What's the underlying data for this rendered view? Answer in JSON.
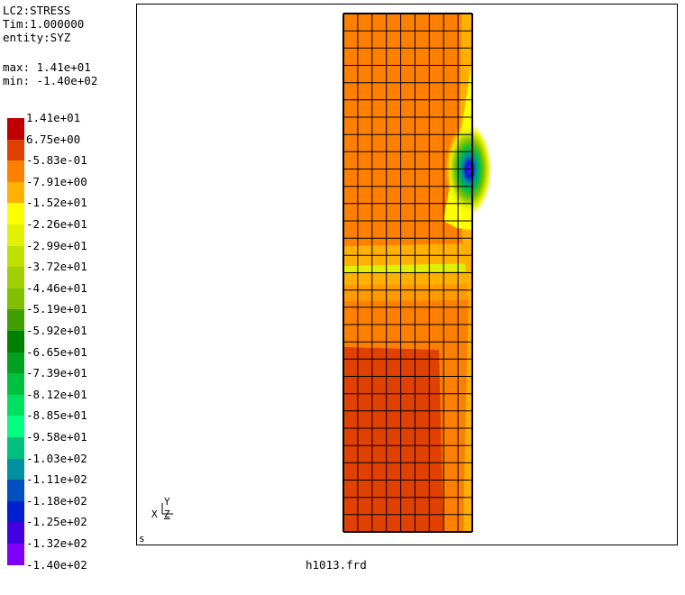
{
  "header": {
    "line1": "LC2:STRESS",
    "line2": "Tim:1.000000",
    "line3": "entity:SYZ",
    "max": "max: 1.41e+01",
    "min": "min: -1.40e+02"
  },
  "legend": {
    "labels": [
      "1.41e+01",
      "6.75e+00",
      "-5.83e-01",
      "-7.91e+00",
      "-1.52e+01",
      "-2.26e+01",
      "-2.99e+01",
      "-3.72e+01",
      "-4.46e+01",
      "-5.19e+01",
      "-5.92e+01",
      "-6.65e+01",
      "-7.39e+01",
      "-8.12e+01",
      "-8.85e+01",
      "-9.58e+01",
      "-1.03e+02",
      "-1.11e+02",
      "-1.18e+02",
      "-1.25e+02",
      "-1.32e+02",
      "-1.40e+02"
    ],
    "colors": [
      "#c00000",
      "#e04000",
      "#ff8000",
      "#ffb000",
      "#ffff00",
      "#e0f000",
      "#c0e000",
      "#a0d000",
      "#80c000",
      "#40a000",
      "#008000",
      "#00a020",
      "#00c040",
      "#00e060",
      "#00ff80",
      "#00c080",
      "#0090a0",
      "#0050c0",
      "#0020d0",
      "#4000e0",
      "#8000ff"
    ]
  },
  "viewport": {
    "corner_label": "s",
    "axes": {
      "y": "Y",
      "x": "X",
      "z": "Z"
    }
  },
  "footer": {
    "filename": "h1013.frd"
  },
  "colors": {
    "orange": "#ff8000",
    "light_orange": "#ffb000",
    "yellow": "#ffff00",
    "yellow_green": "#e0f000",
    "red_orange": "#e04000",
    "mesh_line": "#000000"
  }
}
